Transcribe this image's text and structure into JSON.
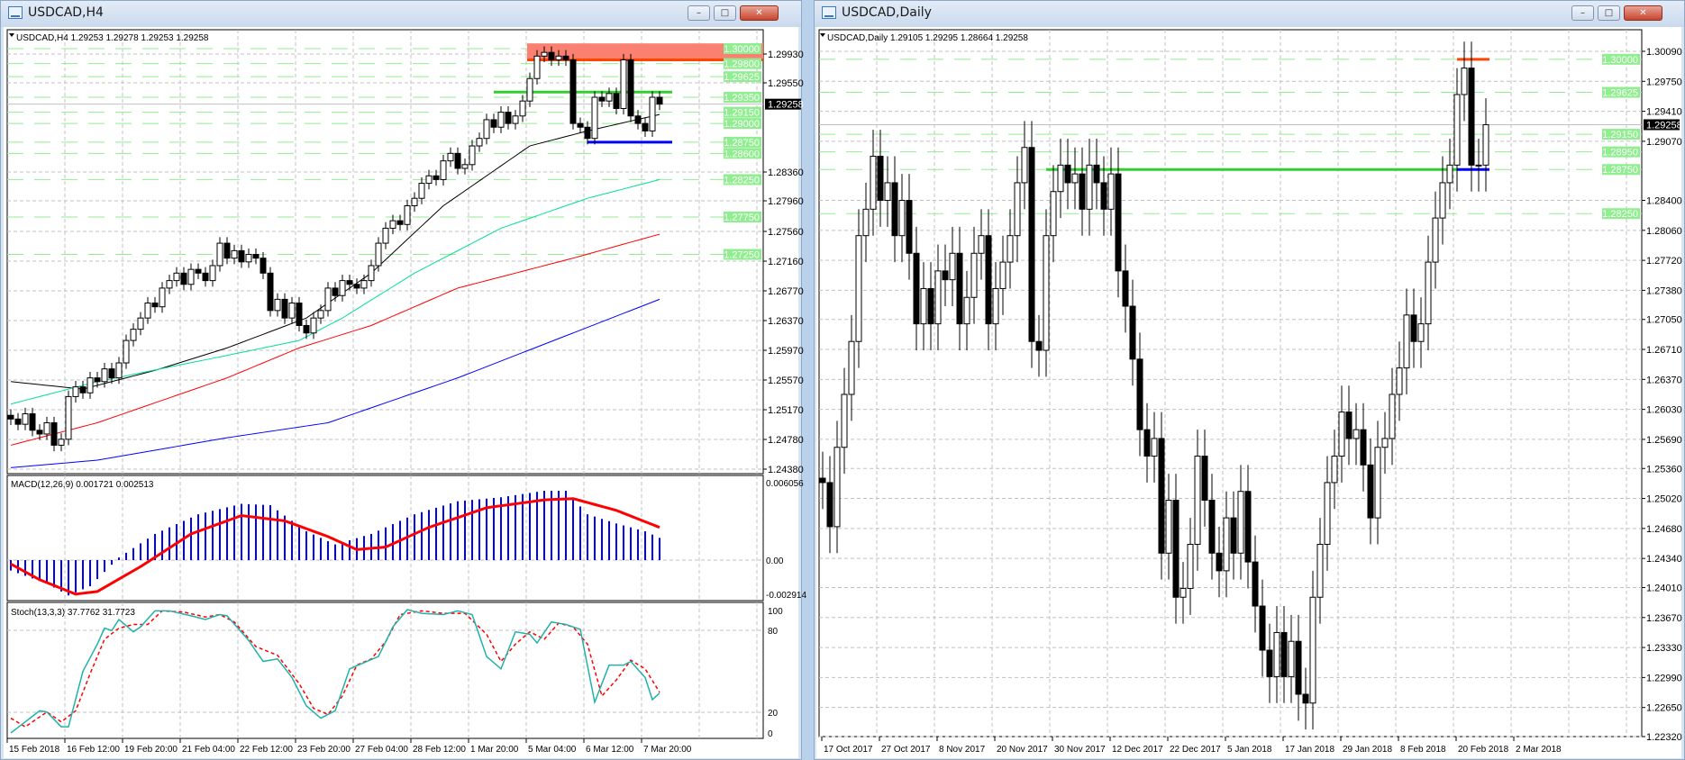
{
  "left_window": {
    "title": "USDCAD,H4",
    "header": "USDCAD,H4  1.29253 1.29278 1.29253 1.29258",
    "buttons": {
      "minimize": "–",
      "maximize": "□",
      "close": "✕"
    },
    "price_axis": [
      "1.29930",
      "1.29550",
      "1.28360",
      "1.27960",
      "1.27560",
      "1.27160",
      "1.26770",
      "1.26370",
      "1.25970",
      "1.25570",
      "1.25170",
      "1.24780",
      "1.24380"
    ],
    "level_labels": [
      "1.30000",
      "1.29800",
      "1.29625",
      "1.29350",
      "1.29150",
      "1.29000",
      "1.28750",
      "1.28600",
      "1.28250",
      "1.27750",
      "1.27250"
    ],
    "current_price": "1.29258",
    "time_axis": [
      "15 Feb 2018",
      "16 Feb 12:00",
      "19 Feb 20:00",
      "21 Feb 04:00",
      "22 Feb 12:00",
      "23 Feb 20:00",
      "27 Feb 04:00",
      "28 Feb 12:00",
      "1 Mar 20:00",
      "5 Mar 04:00",
      "6 Mar 12:00",
      "7 Mar 20:00"
    ],
    "closes": [
      1.2505,
      1.2498,
      1.2512,
      1.249,
      1.2485,
      1.25,
      1.247,
      1.2478,
      1.2535,
      1.2548,
      1.254,
      1.256,
      1.2555,
      1.2572,
      1.256,
      1.258,
      1.261,
      1.2625,
      1.264,
      1.266,
      1.2655,
      1.268,
      1.269,
      1.27,
      1.2685,
      1.2705,
      1.27,
      1.269,
      1.271,
      1.274,
      1.272,
      1.273,
      1.2715,
      1.2725,
      1.272,
      1.27,
      1.265,
      1.2665,
      1.264,
      1.266,
      1.263,
      1.262,
      1.264,
      1.265,
      1.268,
      1.267,
      1.269,
      1.2685,
      1.268,
      1.269,
      1.271,
      1.274,
      1.276,
      1.277,
      1.2765,
      1.279,
      1.28,
      1.282,
      1.283,
      1.2825,
      1.285,
      1.286,
      1.284,
      1.2845,
      1.287,
      1.288,
      1.2905,
      1.2895,
      1.2915,
      1.29,
      1.291,
      1.293,
      1.296,
      1.299,
      1.2995,
      1.2985,
      1.299,
      1.2985,
      1.29,
      1.2895,
      1.288,
      1.2935,
      1.293,
      1.294,
      1.292,
      1.2985,
      1.291,
      1.29,
      1.289,
      1.2935,
      1.29258
    ],
    "moving_averages": [
      {
        "color": "#000000",
        "points": [
          [
            0,
            1.2555
          ],
          [
            10,
            1.2545
          ],
          [
            20,
            1.257
          ],
          [
            30,
            1.26
          ],
          [
            41,
            1.264
          ],
          [
            50,
            1.27
          ],
          [
            60,
            1.279
          ],
          [
            66,
            1.283
          ],
          [
            72,
            1.287
          ],
          [
            80,
            1.289
          ],
          [
            90,
            1.2912
          ]
        ]
      },
      {
        "color": "#00e090",
        "points": [
          [
            0,
            1.2525
          ],
          [
            12,
            1.2555
          ],
          [
            30,
            1.259
          ],
          [
            40,
            1.261
          ],
          [
            46,
            1.264
          ],
          [
            56,
            1.27
          ],
          [
            68,
            1.276
          ],
          [
            80,
            1.28
          ],
          [
            90,
            1.2825
          ]
        ]
      },
      {
        "color": "#ff0000",
        "points": [
          [
            0,
            1.247
          ],
          [
            12,
            1.25
          ],
          [
            30,
            1.256
          ],
          [
            40,
            1.26
          ],
          [
            50,
            1.263
          ],
          [
            62,
            1.268
          ],
          [
            78,
            1.272
          ],
          [
            90,
            1.2752
          ]
        ]
      },
      {
        "color": "#0000ff",
        "points": [
          [
            0,
            1.244
          ],
          [
            12,
            1.245
          ],
          [
            30,
            1.248
          ],
          [
            44,
            1.25
          ],
          [
            50,
            1.252
          ],
          [
            62,
            1.256
          ],
          [
            78,
            1.262
          ],
          [
            90,
            1.2665
          ]
        ]
      }
    ],
    "levels": {
      "green_dashed": [
        1.3,
        1.298,
        1.29625,
        1.2935,
        1.2915,
        1.29,
        1.2875,
        1.286,
        1.2825,
        1.2775,
        1.2725
      ],
      "resistance_zone": [
        1.2985,
        1.3007
      ],
      "green_line": 1.2942,
      "blue_line": 1.2875,
      "colors": {
        "zone": "#fa8072",
        "zone_edge": "#ff4500",
        "green": "#32cd32",
        "blue": "#0000ff",
        "level": "#90ee90"
      }
    },
    "macd": {
      "label": "MACD(12,26,9) 0.001721 0.002513",
      "axis": [
        "0.006056",
        "0.00",
        "-0.002914"
      ],
      "histogram_points": [
        [
          0,
          -0.0008
        ],
        [
          5,
          -0.0018
        ],
        [
          8,
          -0.0027
        ],
        [
          11,
          -0.002
        ],
        [
          15,
          0.0002
        ],
        [
          20,
          0.002
        ],
        [
          26,
          0.0035
        ],
        [
          32,
          0.0043
        ],
        [
          36,
          0.0042
        ],
        [
          41,
          0.0022
        ],
        [
          45,
          0.0012
        ],
        [
          50,
          0.002
        ],
        [
          56,
          0.0035
        ],
        [
          62,
          0.0045
        ],
        [
          68,
          0.0048
        ],
        [
          74,
          0.0053
        ],
        [
          77,
          0.0053
        ],
        [
          80,
          0.0035
        ],
        [
          84,
          0.0028
        ],
        [
          88,
          0.0022
        ],
        [
          90,
          0.0017
        ]
      ],
      "signal_points": [
        [
          0,
          -0.0003
        ],
        [
          4,
          -0.0015
        ],
        [
          9,
          -0.0026
        ],
        [
          12,
          -0.0024
        ],
        [
          18,
          -0.0005
        ],
        [
          25,
          0.002
        ],
        [
          32,
          0.0034
        ],
        [
          38,
          0.003
        ],
        [
          44,
          0.0018
        ],
        [
          48,
          0.0008
        ],
        [
          52,
          0.001
        ],
        [
          58,
          0.0025
        ],
        [
          66,
          0.004
        ],
        [
          74,
          0.0046
        ],
        [
          78,
          0.0047
        ],
        [
          84,
          0.0038
        ],
        [
          90,
          0.0025
        ]
      ],
      "colors": {
        "histogram": "#0000ff",
        "signal": "#ff0000"
      }
    },
    "stoch": {
      "label": "Stoch(13,3,3) 37.7762 31.7723",
      "axis": [
        "100",
        "80",
        "20",
        "0"
      ],
      "main_points": [
        [
          0,
          0
        ],
        [
          4,
          18
        ],
        [
          5,
          17
        ],
        [
          7,
          5
        ],
        [
          8,
          5
        ],
        [
          10,
          50
        ],
        [
          12,
          72
        ],
        [
          13,
          85
        ],
        [
          14,
          83
        ],
        [
          15,
          92
        ],
        [
          17,
          82
        ],
        [
          18,
          86
        ],
        [
          20,
          99
        ],
        [
          22,
          99
        ],
        [
          25,
          95
        ],
        [
          27,
          92
        ],
        [
          29,
          96
        ],
        [
          30,
          95
        ],
        [
          33,
          75
        ],
        [
          35,
          58
        ],
        [
          37,
          60
        ],
        [
          39,
          45
        ],
        [
          41,
          22
        ],
        [
          43,
          12
        ],
        [
          45,
          18
        ],
        [
          47,
          52
        ],
        [
          49,
          57
        ],
        [
          51,
          62
        ],
        [
          53,
          86
        ],
        [
          55,
          100
        ],
        [
          57,
          97
        ],
        [
          60,
          96
        ],
        [
          62,
          99
        ],
        [
          64,
          96
        ],
        [
          66,
          62
        ],
        [
          68,
          52
        ],
        [
          70,
          82
        ],
        [
          72,
          80
        ],
        [
          73,
          73
        ],
        [
          75,
          90
        ],
        [
          77,
          88
        ],
        [
          79,
          84
        ],
        [
          81,
          25
        ],
        [
          83,
          55
        ],
        [
          85,
          55
        ],
        [
          86,
          58
        ],
        [
          88,
          45
        ],
        [
          89,
          27
        ],
        [
          91,
          37.8
        ]
      ],
      "signal_points": [
        [
          0,
          12
        ],
        [
          2,
          5
        ],
        [
          5,
          17
        ],
        [
          7,
          9
        ],
        [
          9,
          18
        ],
        [
          11,
          48
        ],
        [
          13,
          76
        ],
        [
          15,
          85
        ],
        [
          17,
          88
        ],
        [
          19,
          88
        ],
        [
          21,
          99
        ],
        [
          24,
          98
        ],
        [
          27,
          94
        ],
        [
          29,
          96
        ],
        [
          31,
          90
        ],
        [
          34,
          70
        ],
        [
          37,
          63
        ],
        [
          40,
          40
        ],
        [
          42,
          20
        ],
        [
          44,
          15
        ],
        [
          46,
          30
        ],
        [
          48,
          55
        ],
        [
          50,
          60
        ],
        [
          52,
          74
        ],
        [
          54,
          96
        ],
        [
          57,
          99
        ],
        [
          60,
          97
        ],
        [
          63,
          97
        ],
        [
          66,
          80
        ],
        [
          68,
          58
        ],
        [
          70,
          72
        ],
        [
          72,
          82
        ],
        [
          74,
          76
        ],
        [
          76,
          89
        ],
        [
          78,
          86
        ],
        [
          80,
          72
        ],
        [
          82,
          30
        ],
        [
          84,
          43
        ],
        [
          86,
          59
        ],
        [
          88,
          52
        ],
        [
          90,
          33
        ],
        [
          91,
          31.8
        ]
      ],
      "colors": {
        "main": "#20b2aa",
        "signal": "#ff0000"
      }
    }
  },
  "right_window": {
    "title": "USDCAD,Daily",
    "header": "USDCAD,Daily  1.29105 1.29295 1.28664 1.29258",
    "buttons": {
      "minimize": "–",
      "maximize": "□",
      "close": "✕"
    },
    "price_axis": [
      "1.30090",
      "1.29750",
      "1.29410",
      "1.29070",
      "1.28400",
      "1.28060",
      "1.27720",
      "1.27380",
      "1.27050",
      "1.26710",
      "1.26370",
      "1.26030",
      "1.25690",
      "1.25360",
      "1.25020",
      "1.24680",
      "1.24340",
      "1.24010",
      "1.23670",
      "1.23330",
      "1.22990",
      "1.22650",
      "1.22320"
    ],
    "level_labels": [
      "1.30000",
      "1.29625",
      "1.29150",
      "1.28950",
      "1.28750",
      "1.28250"
    ],
    "current_price": "1.29258",
    "time_axis": [
      "17 Oct 2017",
      "27 Oct 2017",
      "8 Nov 2017",
      "20 Nov 2017",
      "30 Nov 2017",
      "12 Dec 2017",
      "22 Dec 2017",
      "5 Jan 2018",
      "17 Jan 2018",
      "29 Jan 2018",
      "8 Feb 2018",
      "20 Feb 2018",
      "2 Mar 2018"
    ],
    "closes": [
      1.252,
      1.247,
      1.256,
      1.262,
      1.268,
      1.28,
      1.283,
      1.289,
      1.284,
      1.286,
      1.28,
      1.284,
      1.278,
      1.27,
      1.274,
      1.27,
      1.276,
      1.275,
      1.278,
      1.27,
      1.273,
      1.278,
      1.28,
      1.27,
      1.274,
      1.277,
      1.28,
      1.286,
      1.29,
      1.268,
      1.267,
      1.28,
      1.285,
      1.288,
      1.286,
      1.287,
      1.283,
      1.288,
      1.286,
      1.283,
      1.287,
      1.276,
      1.272,
      1.266,
      1.258,
      1.255,
      1.257,
      1.244,
      1.25,
      1.239,
      1.24,
      1.245,
      1.255,
      1.25,
      1.244,
      1.242,
      1.248,
      1.244,
      1.251,
      1.243,
      1.238,
      1.233,
      1.23,
      1.235,
      1.23,
      1.234,
      1.228,
      1.227,
      1.239,
      1.245,
      1.252,
      1.255,
      1.26,
      1.257,
      1.258,
      1.254,
      1.248,
      1.256,
      1.257,
      1.262,
      1.265,
      1.271,
      1.268,
      1.27,
      1.277,
      1.282,
      1.286,
      1.288,
      1.296,
      1.299,
      1.288,
      1.288,
      1.29258
    ],
    "levels": {
      "green_dashed": [
        1.3,
        1.29625,
        1.2915,
        1.2895,
        1.2875,
        1.2825
      ],
      "green_line": 1.2875,
      "red_line": 1.3,
      "blue_line": 1.2875,
      "colors": {
        "green": "#32cd32",
        "red": "#ff4500",
        "blue": "#0000ff",
        "level": "#90ee90"
      }
    }
  }
}
